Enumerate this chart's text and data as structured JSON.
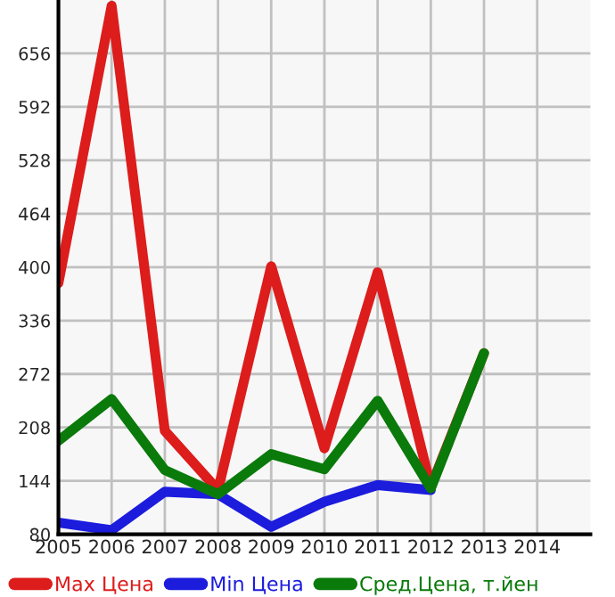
{
  "chart_data": {
    "type": "line",
    "x": [
      2005,
      2006,
      2007,
      2008,
      2009,
      2010,
      2011,
      2012,
      2013
    ],
    "xlim": [
      2005,
      2015
    ],
    "xticks": [
      2005,
      2006,
      2007,
      2008,
      2009,
      2010,
      2011,
      2012,
      2013,
      2014
    ],
    "ylim": [
      80,
      720
    ],
    "yticks": [
      80,
      144,
      208,
      272,
      336,
      400,
      464,
      528,
      592,
      656
    ],
    "grid": true,
    "legend": "bottom",
    "marker": "none",
    "line_style": "solid",
    "series": [
      {
        "name": "Max Цена",
        "color": "#dd1c1c",
        "values": [
          381,
          713,
          204,
          133,
          401,
          183,
          394,
          137,
          297
        ]
      },
      {
        "name": "Min Цена",
        "color": "#1c1cdd",
        "values": [
          94,
          85,
          131,
          128,
          89,
          119,
          139,
          133,
          null
        ]
      },
      {
        "name": "Сред.Цена, т.йен",
        "color": "#0a7a0a",
        "values": [
          192,
          242,
          157,
          128,
          176,
          158,
          240,
          135,
          297
        ]
      }
    ]
  }
}
